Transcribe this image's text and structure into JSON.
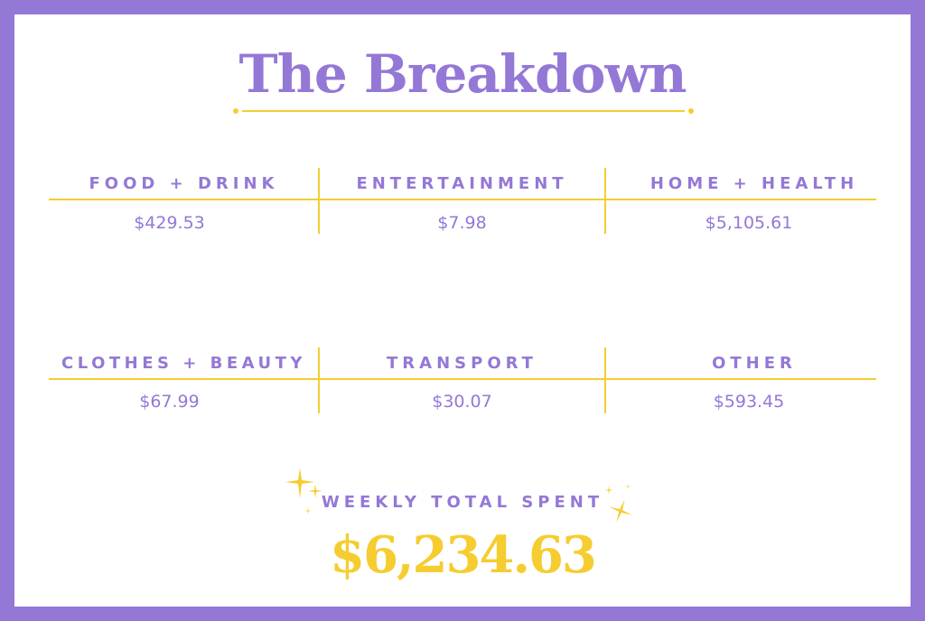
{
  "title": "The Breakdown",
  "rows": [
    [
      {
        "label": "FOOD + DRINK",
        "value": "$429.53"
      },
      {
        "label": "ENTERTAINMENT",
        "value": "$7.98"
      },
      {
        "label": "HOME + HEALTH",
        "value": "$5,105.61"
      }
    ],
    [
      {
        "label": "CLOTHES + BEAUTY",
        "value": "$67.99"
      },
      {
        "label": "TRANSPORT",
        "value": "$30.07"
      },
      {
        "label": "OTHER",
        "value": "$593.45"
      }
    ]
  ],
  "total": {
    "label": "WEEKLY TOTAL SPENT",
    "value": "$6,234.63"
  },
  "colors": {
    "accent_purple": "#9478d6",
    "accent_yellow": "#f5cd30"
  },
  "icons": [
    "sparkle-icon"
  ]
}
